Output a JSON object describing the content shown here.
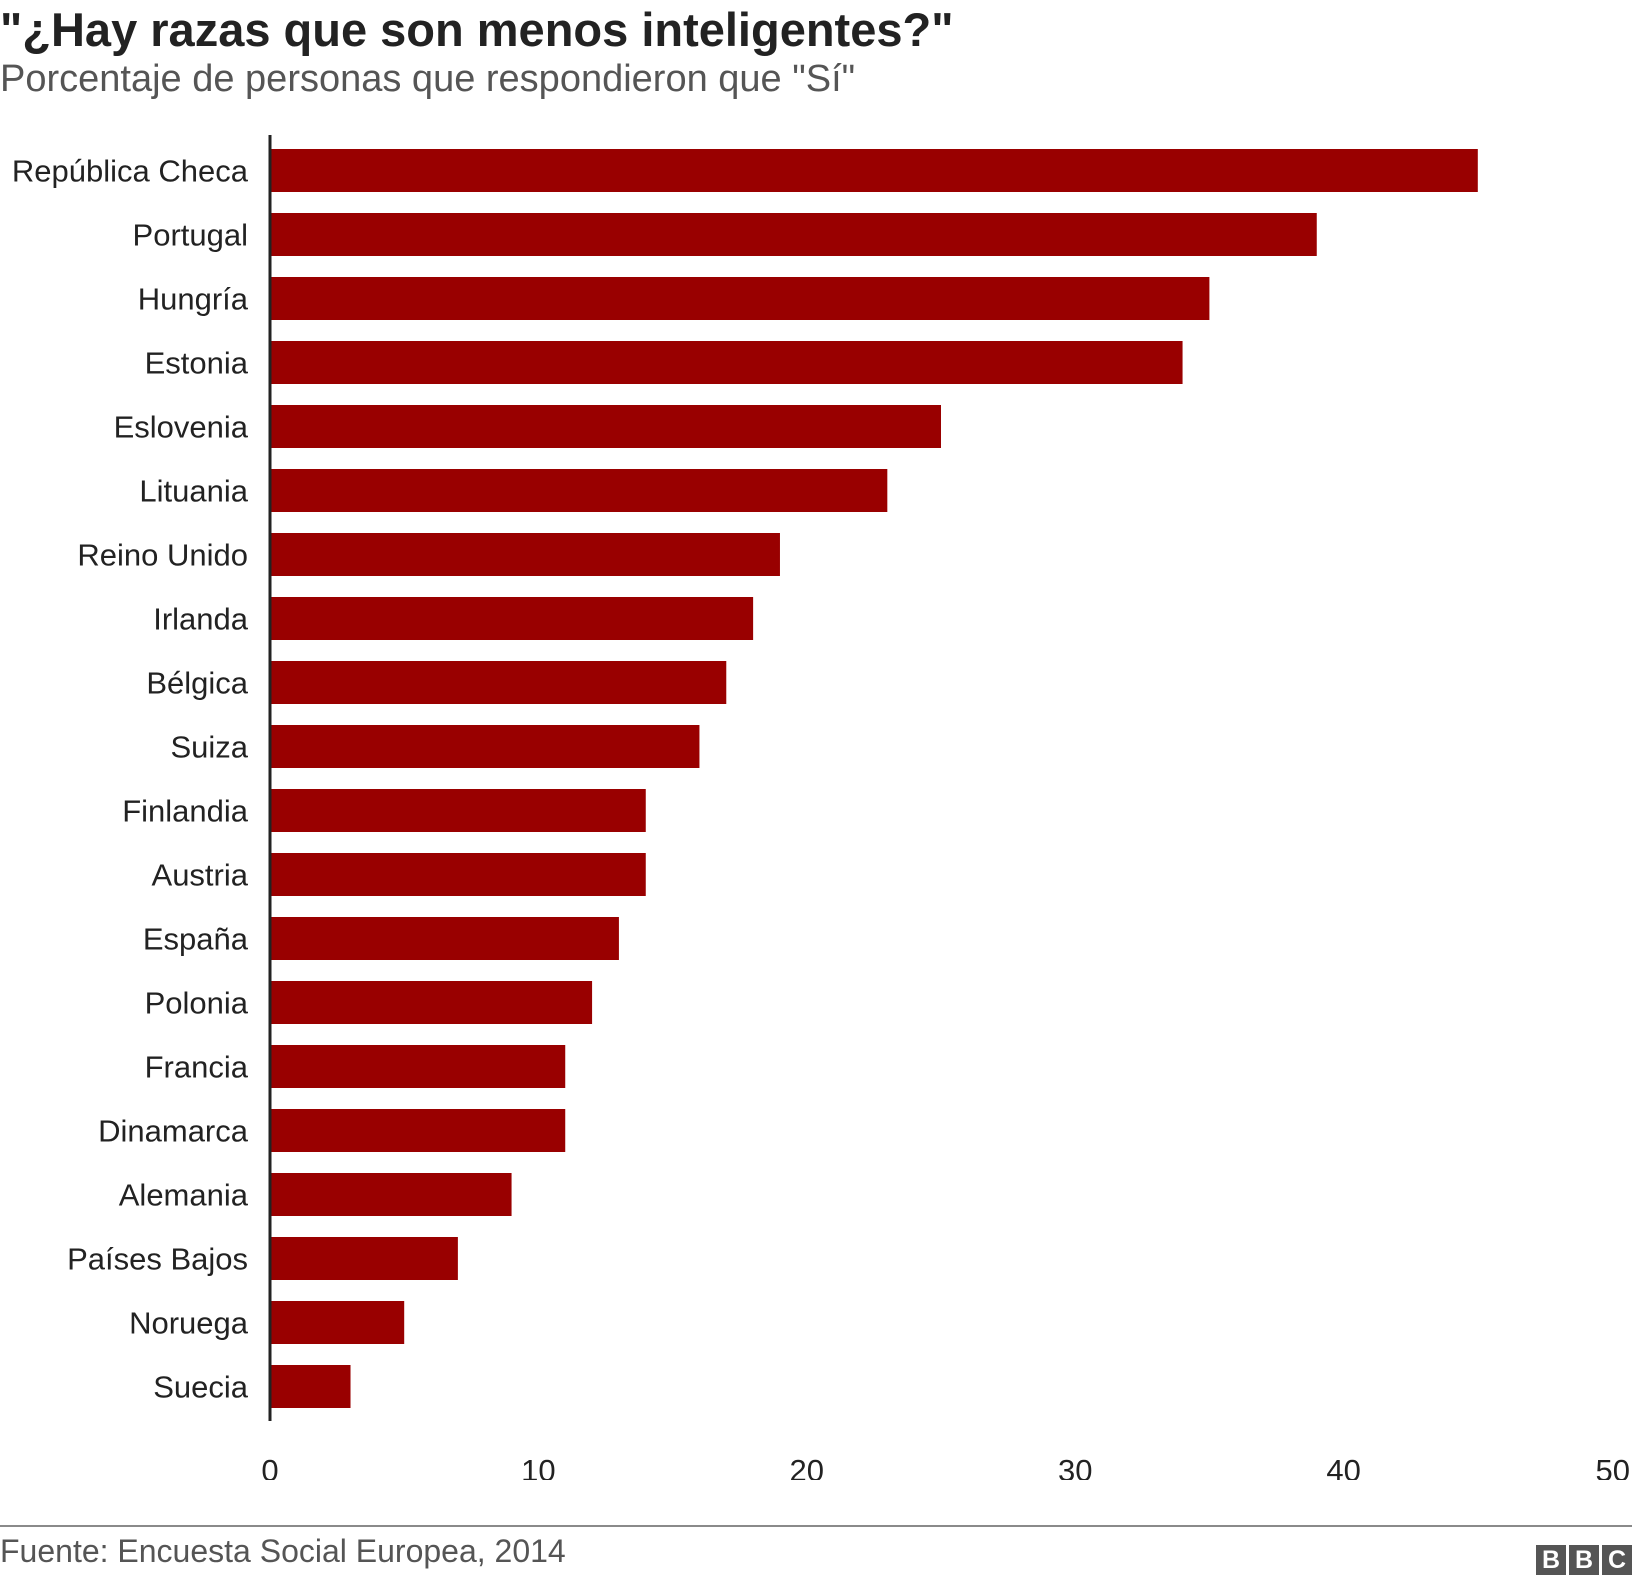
{
  "title": "\"¿Hay razas que son menos inteligentes?\"",
  "subtitle": "Porcentaje de personas que respondieron que \"Sí\"",
  "source": "Fuente: Encuesta Social Europea, 2014",
  "logo": {
    "letters": [
      "B",
      "B",
      "C"
    ],
    "icon": "bbc-logo"
  },
  "colors": {
    "bar": "#990000",
    "axis": "#222222",
    "text": "#222222",
    "muted": "#555555"
  },
  "chart_data": {
    "type": "bar",
    "orientation": "horizontal",
    "title": "\"¿Hay razas que son menos inteligentes?\"",
    "subtitle": "Porcentaje de personas que respondieron que \"Sí\"",
    "xlabel": "",
    "ylabel": "",
    "categories": [
      "República Checa",
      "Portugal",
      "Hungría",
      "Estonia",
      "Eslovenia",
      "Lituania",
      "Reino Unido",
      "Irlanda",
      "Bélgica",
      "Suiza",
      "Finlandia",
      "Austria",
      "España",
      "Polonia",
      "Francia",
      "Dinamarca",
      "Alemania",
      "Países Bajos",
      "Noruega",
      "Suecia"
    ],
    "values": [
      45,
      39,
      35,
      34,
      25,
      23,
      19,
      18,
      17,
      16,
      14,
      14,
      13,
      12,
      11,
      11,
      9,
      7,
      5,
      3
    ],
    "xlim": [
      0,
      50
    ],
    "xticks": [
      0,
      10,
      20,
      30,
      40,
      50
    ],
    "grid": false,
    "legend": "none"
  }
}
